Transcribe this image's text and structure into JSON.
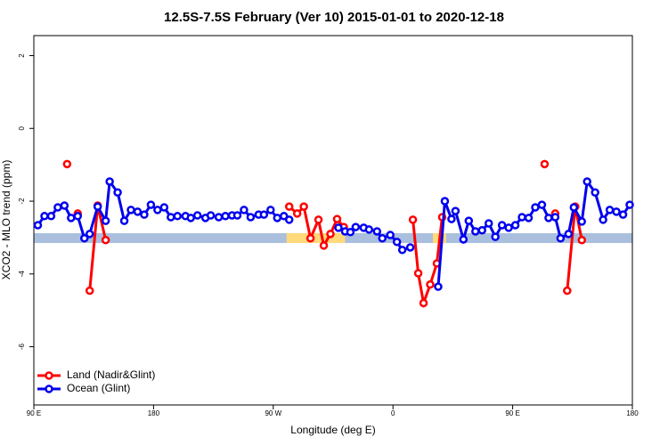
{
  "chart_data": {
    "type": "line",
    "title": "12.5S-7.5S February (Ver 10)   2015-01-01 to 2020-12-18",
    "x_label": "Longitude (deg E)",
    "y_label": "XCO2 - MLO trend (ppm)",
    "xlim": [
      90,
      540
    ],
    "ylim": [
      -7.6,
      2.55
    ],
    "xticks": [
      {
        "value": 90,
        "label": "90 E"
      },
      {
        "value": 180,
        "label": "180"
      },
      {
        "value": 270,
        "label": "90 W"
      },
      {
        "value": 360,
        "label": "0"
      },
      {
        "value": 450,
        "label": "90 E"
      },
      {
        "value": 540,
        "label": "180"
      }
    ],
    "yticks": [
      -6,
      -4,
      -2,
      0,
      2
    ],
    "legend": "bottom-left",
    "band": {
      "ylim": [
        -3.15,
        -2.88
      ],
      "color": "#a9bfdd"
    },
    "land_band": {
      "ranges": [
        [
          280,
          324
        ],
        [
          390,
          400
        ]
      ],
      "color": "#ffd97a"
    },
    "series": [
      {
        "name": "Land (Nadir&Glint)",
        "color": "#ff0000",
        "x": [
          115,
          null,
          123,
          null,
          132,
          138,
          144,
          null,
          282,
          288,
          293,
          298,
          304,
          308,
          313,
          318,
          323,
          null,
          375,
          379,
          383,
          388,
          393,
          397,
          null,
          474,
          null,
          482,
          null,
          491,
          497,
          502
        ],
        "values": [
          -0.98,
          null,
          -2.34,
          null,
          -4.46,
          -2.12,
          -3.07,
          null,
          -2.15,
          -2.34,
          -2.15,
          -3.02,
          -2.51,
          -3.22,
          -2.9,
          -2.49,
          -2.71,
          null,
          -2.51,
          -3.98,
          -4.8,
          -4.29,
          -3.71,
          -2.44,
          null,
          -0.98,
          null,
          -2.34,
          null,
          -4.46,
          -2.15,
          -3.07
        ]
      },
      {
        "name": "Ocean (Glint)",
        "color": "#0000ee",
        "x": [
          93,
          98,
          103,
          108,
          113,
          118,
          123,
          128,
          132,
          138,
          144,
          147,
          153,
          158,
          163,
          168,
          173,
          178,
          183,
          188,
          193,
          198,
          204,
          208,
          213,
          219,
          223,
          229,
          234,
          239,
          243,
          248,
          253,
          259,
          263,
          268,
          273,
          278,
          282,
          null,
          319,
          324,
          328,
          332,
          338,
          342,
          348,
          352,
          358,
          363,
          367,
          373,
          null,
          394,
          399,
          404,
          407,
          413,
          417,
          422,
          427,
          432,
          437,
          442,
          447,
          452,
          457,
          462,
          467,
          472,
          477,
          482,
          486,
          492,
          496,
          502,
          506,
          512,
          518,
          523,
          528,
          533,
          538
        ],
        "values": [
          -2.66,
          -2.41,
          -2.41,
          -2.17,
          -2.12,
          -2.46,
          -2.41,
          -3.02,
          -2.9,
          -2.15,
          -2.54,
          -1.46,
          -1.76,
          -2.54,
          -2.24,
          -2.29,
          -2.37,
          -2.1,
          -2.24,
          -2.17,
          -2.44,
          -2.41,
          -2.41,
          -2.46,
          -2.39,
          -2.46,
          -2.39,
          -2.44,
          -2.41,
          -2.39,
          -2.39,
          -2.24,
          -2.44,
          -2.37,
          -2.37,
          -2.24,
          -2.46,
          -2.41,
          -2.51,
          null,
          -2.73,
          -2.83,
          -2.85,
          -2.71,
          -2.73,
          -2.78,
          -2.83,
          -3.02,
          -2.93,
          -3.12,
          -3.34,
          -3.27,
          null,
          -4.35,
          -2.0,
          -2.49,
          -2.27,
          -3.05,
          -2.54,
          -2.83,
          -2.8,
          -2.61,
          -2.98,
          -2.66,
          -2.73,
          -2.66,
          -2.44,
          -2.46,
          -2.17,
          -2.1,
          -2.46,
          -2.44,
          -3.02,
          -2.9,
          -2.17,
          -2.56,
          -1.46,
          -1.76,
          -2.51,
          -2.24,
          -2.29,
          -2.37,
          -2.1
        ]
      }
    ]
  }
}
